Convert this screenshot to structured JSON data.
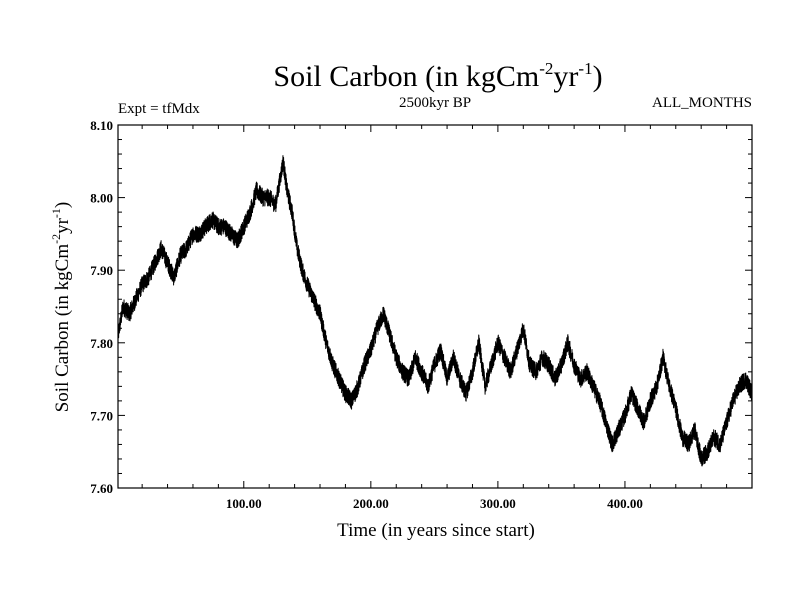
{
  "chart_data": {
    "type": "line",
    "title_main": "Soil Carbon (in kgCm",
    "title_sup1": "-2",
    "title_mid": "yr",
    "title_sup2": "-1",
    "title_end": ")",
    "left_label": "Expt = tfMdx",
    "center_label": "2500kyr BP",
    "right_label": "ALL_MONTHS",
    "xlabel": "Time (in years since start)",
    "ylabel_main": "Soil Carbon (in kgCm",
    "ylabel_sup1": "-2",
    "ylabel_mid": "yr",
    "ylabel_sup2": "-1",
    "ylabel_end": ")",
    "xlim": [
      1,
      500
    ],
    "ylim": [
      7.6,
      8.1
    ],
    "x_ticks": [
      100,
      200,
      300,
      400
    ],
    "x_tick_labels": [
      "100.00",
      "200.00",
      "300.00",
      "400.00"
    ],
    "y_ticks": [
      7.6,
      7.7,
      7.8,
      7.9,
      8.0,
      8.1
    ],
    "y_tick_labels": [
      "7.60",
      "7.70",
      "7.80",
      "7.90",
      "8.00",
      "8.10"
    ],
    "series": [
      {
        "name": "Soil Carbon",
        "color": "#000000",
        "x": [
          1,
          5,
          10,
          15,
          20,
          25,
          30,
          35,
          40,
          45,
          50,
          55,
          60,
          65,
          70,
          75,
          80,
          85,
          90,
          95,
          100,
          105,
          110,
          115,
          120,
          125,
          128,
          131,
          134,
          138,
          142,
          146,
          150,
          155,
          160,
          165,
          170,
          175,
          180,
          185,
          190,
          195,
          200,
          205,
          210,
          215,
          220,
          225,
          230,
          235,
          240,
          245,
          250,
          255,
          260,
          265,
          270,
          275,
          280,
          285,
          290,
          295,
          300,
          305,
          310,
          315,
          320,
          325,
          330,
          335,
          340,
          345,
          350,
          355,
          360,
          365,
          370,
          375,
          380,
          385,
          390,
          395,
          400,
          405,
          410,
          415,
          420,
          425,
          430,
          435,
          440,
          445,
          450,
          455,
          460,
          465,
          470,
          475,
          480,
          485,
          490,
          495,
          500
        ],
        "values": [
          7.81,
          7.85,
          7.84,
          7.86,
          7.88,
          7.89,
          7.91,
          7.93,
          7.91,
          7.89,
          7.92,
          7.93,
          7.95,
          7.95,
          7.96,
          7.97,
          7.96,
          7.96,
          7.95,
          7.94,
          7.96,
          7.98,
          8.01,
          8.0,
          8.0,
          7.99,
          8.02,
          8.05,
          8.01,
          7.98,
          7.93,
          7.9,
          7.88,
          7.86,
          7.84,
          7.8,
          7.77,
          7.75,
          7.73,
          7.72,
          7.74,
          7.77,
          7.79,
          7.82,
          7.84,
          7.81,
          7.78,
          7.76,
          7.75,
          7.78,
          7.76,
          7.74,
          7.77,
          7.79,
          7.75,
          7.78,
          7.75,
          7.73,
          7.76,
          7.8,
          7.74,
          7.77,
          7.8,
          7.78,
          7.76,
          7.79,
          7.82,
          7.77,
          7.76,
          7.78,
          7.77,
          7.75,
          7.77,
          7.8,
          7.77,
          7.75,
          7.76,
          7.74,
          7.72,
          7.69,
          7.66,
          7.68,
          7.7,
          7.73,
          7.71,
          7.69,
          7.72,
          7.74,
          7.78,
          7.74,
          7.71,
          7.67,
          7.66,
          7.68,
          7.64,
          7.65,
          7.67,
          7.66,
          7.69,
          7.72,
          7.74,
          7.75,
          7.73
        ]
      }
    ]
  }
}
